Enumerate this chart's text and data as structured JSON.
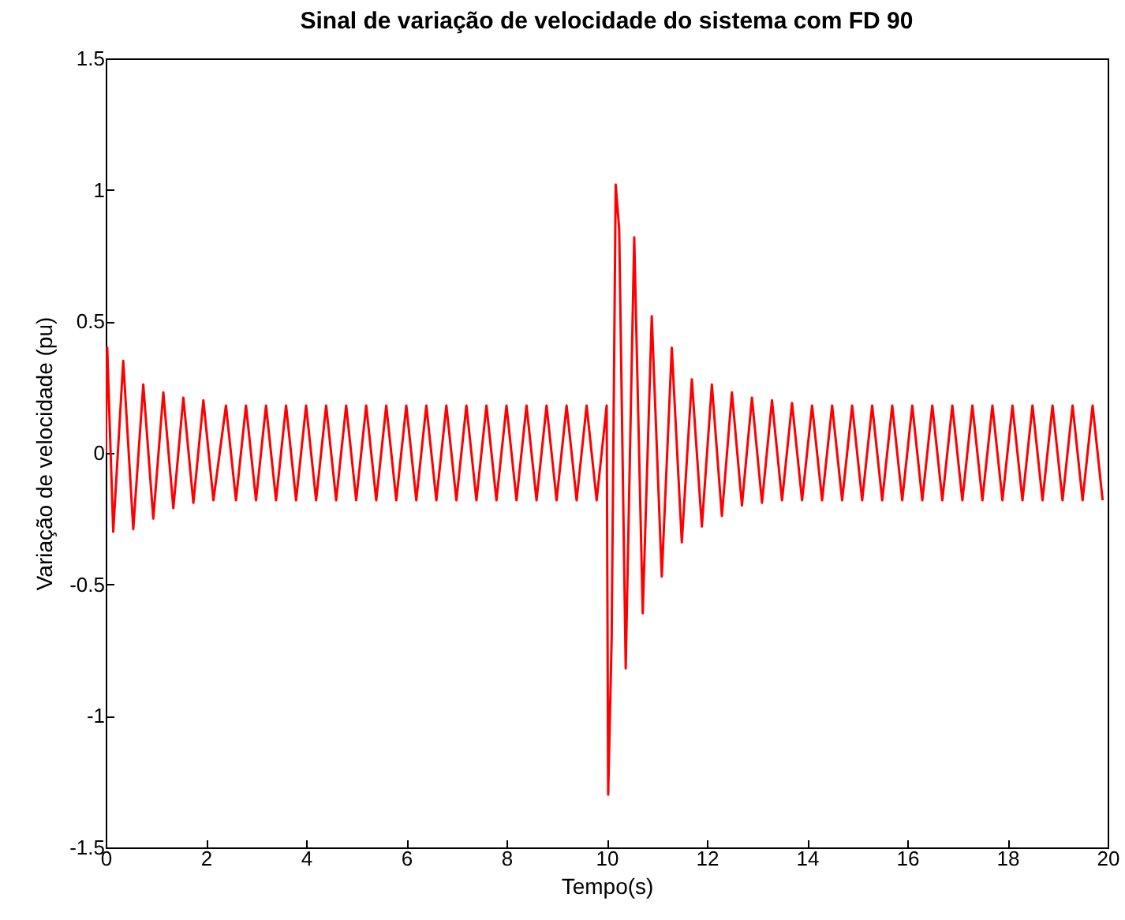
{
  "chart_data": {
    "type": "line",
    "title": "Sinal de variação de velocidade do sistema com FD 90",
    "xlabel": "Tempo(s)",
    "ylabel": "Variação de velocidade (pu)",
    "xlim": [
      0,
      20
    ],
    "xticks": [
      0,
      2,
      4,
      6,
      8,
      10,
      12,
      14,
      16,
      18,
      20
    ],
    "ylim": [
      -1.5,
      1.5
    ],
    "yticks": [
      -1.5,
      -1,
      -0.5,
      0,
      0.5,
      1,
      1.5
    ],
    "grid": false,
    "series": [
      {
        "color": "#ff0000",
        "x": [
          0,
          0.03,
          0.15,
          0.35,
          0.55,
          0.75,
          0.95,
          1.15,
          1.35,
          1.55,
          1.75,
          1.95,
          2.15,
          2.4,
          2.6,
          2.8,
          3.0,
          3.2,
          3.4,
          3.6,
          3.8,
          4.0,
          4.2,
          4.4,
          4.6,
          4.8,
          5.0,
          5.2,
          5.4,
          5.6,
          5.8,
          6.0,
          6.2,
          6.4,
          6.6,
          6.8,
          7.0,
          7.2,
          7.4,
          7.6,
          7.8,
          8.0,
          8.2,
          8.4,
          8.6,
          8.8,
          9.0,
          9.2,
          9.4,
          9.6,
          9.8,
          10.0,
          10.03,
          10.1,
          10.18,
          10.25,
          10.38,
          10.55,
          10.72,
          10.9,
          11.1,
          11.3,
          11.5,
          11.7,
          11.9,
          12.1,
          12.3,
          12.5,
          12.7,
          12.9,
          13.1,
          13.3,
          13.5,
          13.7,
          13.9,
          14.1,
          14.3,
          14.5,
          14.7,
          14.9,
          15.1,
          15.3,
          15.5,
          15.7,
          15.9,
          16.1,
          16.3,
          16.5,
          16.7,
          16.9,
          17.1,
          17.3,
          17.5,
          17.7,
          17.9,
          18.1,
          18.3,
          18.5,
          18.7,
          18.9,
          19.1,
          19.3,
          19.5,
          19.7,
          19.9
        ],
        "values": [
          0,
          0.4,
          -0.3,
          0.35,
          -0.29,
          0.26,
          -0.25,
          0.23,
          -0.21,
          0.21,
          -0.19,
          0.2,
          -0.18,
          0.18,
          -0.18,
          0.18,
          -0.18,
          0.18,
          -0.18,
          0.18,
          -0.18,
          0.18,
          -0.18,
          0.18,
          -0.18,
          0.18,
          -0.18,
          0.18,
          -0.18,
          0.18,
          -0.18,
          0.18,
          -0.18,
          0.18,
          -0.18,
          0.18,
          -0.18,
          0.18,
          -0.18,
          0.18,
          -0.18,
          0.18,
          -0.18,
          0.18,
          -0.18,
          0.18,
          -0.18,
          0.18,
          -0.18,
          0.18,
          -0.18,
          0.18,
          -1.3,
          -0.7,
          1.02,
          0.85,
          -0.82,
          0.82,
          -0.61,
          0.52,
          -0.47,
          0.4,
          -0.34,
          0.28,
          -0.28,
          0.26,
          -0.24,
          0.23,
          -0.2,
          0.21,
          -0.19,
          0.2,
          -0.18,
          0.19,
          -0.18,
          0.18,
          -0.18,
          0.18,
          -0.18,
          0.18,
          -0.18,
          0.18,
          -0.18,
          0.18,
          -0.18,
          0.18,
          -0.18,
          0.18,
          -0.18,
          0.18,
          -0.18,
          0.18,
          -0.18,
          0.18,
          -0.18,
          0.18,
          -0.18,
          0.18,
          -0.18,
          0.18,
          -0.18,
          0.18,
          -0.18,
          0.18,
          -0.18
        ]
      }
    ]
  }
}
